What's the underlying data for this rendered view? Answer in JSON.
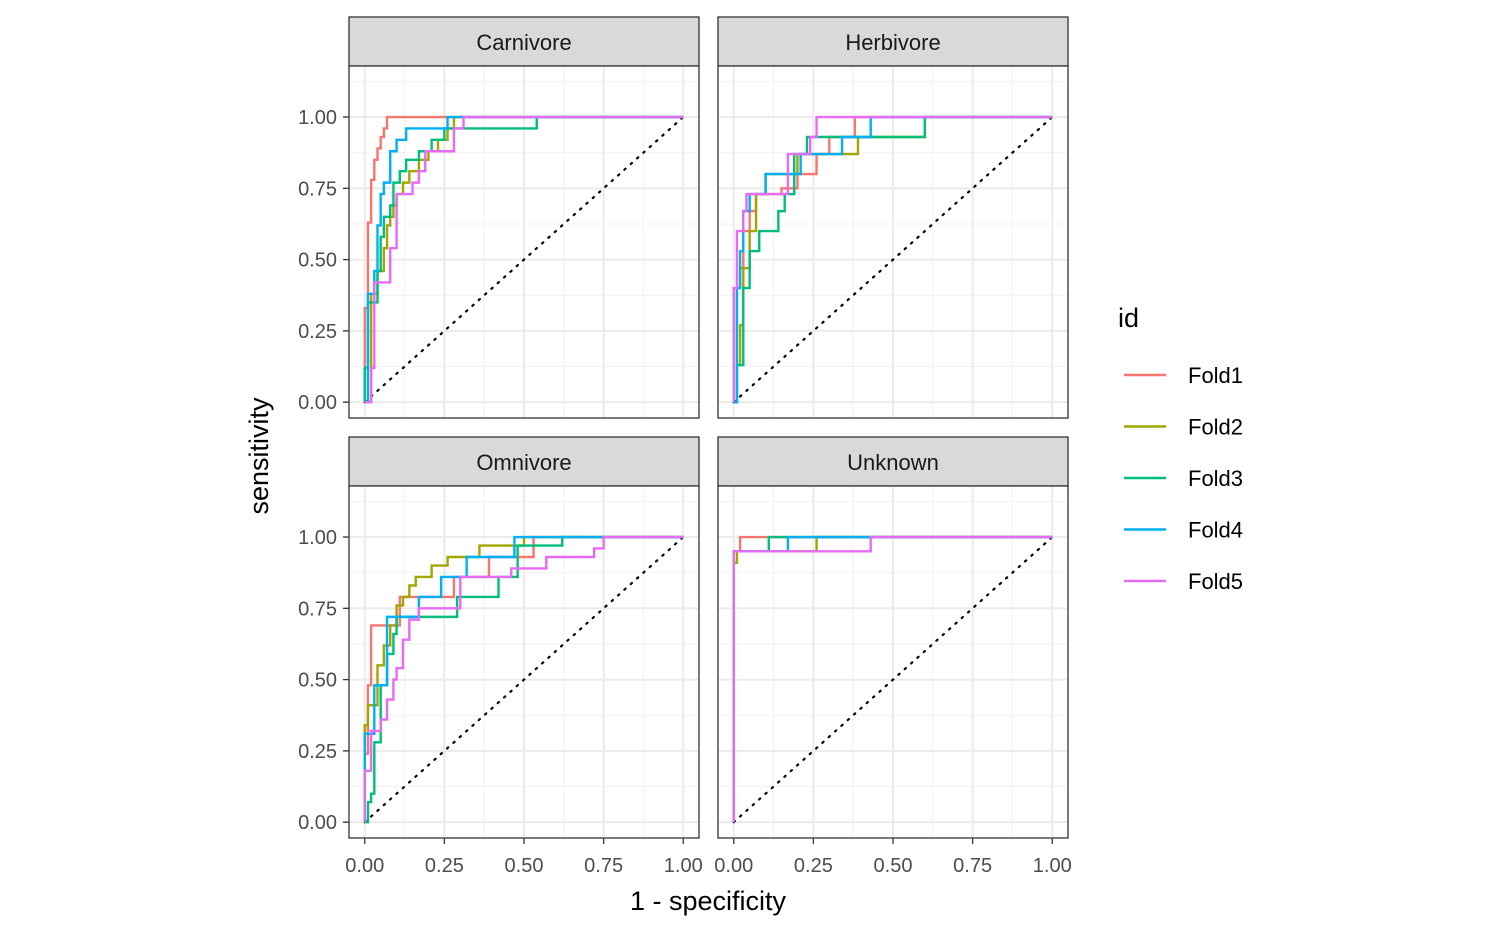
{
  "chart_data": {
    "type": "line",
    "xlabel": "1 - specificity",
    "ylabel": "sensitivity",
    "xlim": [
      0,
      1
    ],
    "ylim": [
      0,
      1
    ],
    "x_ticks": [
      "0.00",
      "0.25",
      "0.50",
      "0.75",
      "1.00"
    ],
    "y_ticks": [
      "0.00",
      "0.25",
      "0.50",
      "0.75",
      "1.00"
    ],
    "grid": true,
    "reference_line": "diagonal-dotted",
    "legend": {
      "title": "id",
      "placement": "right",
      "entries": [
        "Fold1",
        "Fold2",
        "Fold3",
        "Fold4",
        "Fold5"
      ]
    },
    "colors": {
      "Fold1": "#F8766D",
      "Fold2": "#A3A500",
      "Fold3": "#00BF7D",
      "Fold4": "#00B0F6",
      "Fold5": "#E76BF3"
    },
    "panels": [
      {
        "name": "Carnivore",
        "series": [
          {
            "name": "Fold1",
            "x": [
              0,
              0,
              0.01,
              0.01,
              0.02,
              0.02,
              0.03,
              0.03,
              0.04,
              0.04,
              0.05,
              0.05,
              0.06,
              0.06,
              0.07,
              0.07,
              0.12,
              0.25,
              1.0
            ],
            "y": [
              0,
              0.33,
              0.33,
              0.63,
              0.63,
              0.78,
              0.78,
              0.85,
              0.85,
              0.89,
              0.89,
              0.93,
              0.93,
              0.96,
              0.96,
              1.0,
              1.0,
              1.0,
              1.0
            ]
          },
          {
            "name": "Fold2",
            "x": [
              0,
              0.02,
              0.02,
              0.04,
              0.04,
              0.06,
              0.06,
              0.07,
              0.07,
              0.08,
              0.08,
              0.09,
              0.09,
              0.1,
              0.1,
              0.12,
              0.12,
              0.14,
              0.14,
              0.17,
              0.17,
              0.2,
              0.2,
              0.23,
              0.23,
              0.26,
              0.26,
              0.28,
              0.28,
              1.0
            ],
            "y": [
              0,
              0,
              0.38,
              0.38,
              0.46,
              0.46,
              0.54,
              0.54,
              0.62,
              0.62,
              0.65,
              0.65,
              0.69,
              0.69,
              0.73,
              0.73,
              0.77,
              0.77,
              0.81,
              0.81,
              0.85,
              0.85,
              0.88,
              0.88,
              0.92,
              0.92,
              0.96,
              0.96,
              1.0,
              1.0
            ]
          },
          {
            "name": "Fold3",
            "x": [
              0,
              0,
              0.01,
              0.01,
              0.04,
              0.04,
              0.05,
              0.05,
              0.06,
              0.06,
              0.08,
              0.08,
              0.09,
              0.09,
              0.11,
              0.11,
              0.13,
              0.13,
              0.17,
              0.17,
              0.21,
              0.21,
              0.25,
              0.25,
              0.3,
              0.3,
              0.54,
              0.54,
              1.0
            ],
            "y": [
              0,
              0.12,
              0.12,
              0.35,
              0.35,
              0.46,
              0.46,
              0.58,
              0.58,
              0.65,
              0.65,
              0.69,
              0.69,
              0.77,
              0.77,
              0.81,
              0.81,
              0.85,
              0.85,
              0.88,
              0.88,
              0.92,
              0.92,
              0.96,
              0.96,
              0.96,
              0.96,
              1.0,
              1.0
            ]
          },
          {
            "name": "Fold4",
            "x": [
              0,
              0.01,
              0.01,
              0.03,
              0.03,
              0.04,
              0.04,
              0.05,
              0.05,
              0.06,
              0.06,
              0.08,
              0.08,
              0.1,
              0.1,
              0.13,
              0.13,
              0.26,
              0.26,
              1.0
            ],
            "y": [
              0,
              0,
              0.38,
              0.38,
              0.46,
              0.46,
              0.62,
              0.62,
              0.73,
              0.73,
              0.77,
              0.77,
              0.88,
              0.88,
              0.92,
              0.92,
              0.96,
              0.96,
              1.0,
              1.0
            ]
          },
          {
            "name": "Fold5",
            "x": [
              0,
              0.02,
              0.02,
              0.03,
              0.03,
              0.08,
              0.08,
              0.1,
              0.1,
              0.12,
              0.12,
              0.15,
              0.15,
              0.17,
              0.17,
              0.19,
              0.19,
              0.28,
              0.28,
              0.31,
              0.31,
              1.0
            ],
            "y": [
              0,
              0,
              0.12,
              0.12,
              0.42,
              0.42,
              0.54,
              0.54,
              0.73,
              0.73,
              0.73,
              0.73,
              0.77,
              0.77,
              0.81,
              0.81,
              0.88,
              0.88,
              0.96,
              0.96,
              1.0,
              1.0
            ]
          }
        ]
      },
      {
        "name": "Herbivore",
        "series": [
          {
            "name": "Fold1",
            "x": [
              0,
              0.01,
              0.01,
              0.02,
              0.02,
              0.03,
              0.03,
              0.05,
              0.05,
              0.07,
              0.07,
              0.12,
              0.12,
              0.15,
              0.15,
              0.17,
              0.17,
              0.2,
              0.2,
              0.26,
              0.26,
              0.3,
              0.3,
              0.38,
              0.38,
              0.59,
              0.59,
              1.0
            ],
            "y": [
              0,
              0,
              0.4,
              0.4,
              0.47,
              0.47,
              0.6,
              0.6,
              0.67,
              0.67,
              0.73,
              0.73,
              0.73,
              0.73,
              0.75,
              0.75,
              0.75,
              0.75,
              0.8,
              0.8,
              0.87,
              0.87,
              0.93,
              0.93,
              1.0,
              1.0,
              1.0,
              1.0
            ]
          },
          {
            "name": "Fold2",
            "x": [
              0,
              0.01,
              0.01,
              0.02,
              0.02,
              0.03,
              0.03,
              0.05,
              0.05,
              0.07,
              0.07,
              0.1,
              0.1,
              0.14,
              0.14,
              0.17,
              0.17,
              0.2,
              0.2,
              0.25,
              0.25,
              0.39,
              0.39,
              0.6,
              0.6,
              0.61,
              0.61,
              1.0
            ],
            "y": [
              0,
              0,
              0.13,
              0.13,
              0.27,
              0.27,
              0.47,
              0.47,
              0.6,
              0.6,
              0.73,
              0.73,
              0.8,
              0.8,
              0.8,
              0.8,
              0.8,
              0.8,
              0.87,
              0.87,
              0.87,
              0.87,
              0.93,
              0.93,
              1.0,
              1.0,
              1.0,
              1.0
            ]
          },
          {
            "name": "Fold3",
            "x": [
              0,
              0.01,
              0.01,
              0.03,
              0.03,
              0.05,
              0.05,
              0.08,
              0.08,
              0.14,
              0.14,
              0.16,
              0.16,
              0.19,
              0.19,
              0.23,
              0.23,
              0.6,
              0.6,
              1.0
            ],
            "y": [
              0,
              0,
              0.13,
              0.13,
              0.4,
              0.4,
              0.53,
              0.53,
              0.6,
              0.6,
              0.67,
              0.67,
              0.73,
              0.73,
              0.87,
              0.87,
              0.93,
              0.93,
              1.0,
              1.0
            ]
          },
          {
            "name": "Fold4",
            "x": [
              0,
              0.01,
              0.01,
              0.02,
              0.02,
              0.03,
              0.03,
              0.05,
              0.05,
              0.1,
              0.1,
              0.14,
              0.14,
              0.21,
              0.21,
              0.34,
              0.34,
              0.43,
              0.43,
              1.0
            ],
            "y": [
              0,
              0,
              0.4,
              0.4,
              0.53,
              0.53,
              0.67,
              0.67,
              0.73,
              0.73,
              0.8,
              0.8,
              0.8,
              0.8,
              0.87,
              0.87,
              0.93,
              0.93,
              1.0,
              1.0
            ]
          },
          {
            "name": "Fold5",
            "x": [
              0,
              0,
              0.01,
              0.01,
              0.03,
              0.03,
              0.04,
              0.04,
              0.12,
              0.12,
              0.17,
              0.17,
              0.24,
              0.24,
              0.26,
              0.26,
              1.0
            ],
            "y": [
              0,
              0.4,
              0.4,
              0.6,
              0.6,
              0.67,
              0.67,
              0.73,
              0.73,
              0.73,
              0.73,
              0.87,
              0.87,
              0.93,
              0.93,
              1.0,
              1.0
            ]
          }
        ]
      },
      {
        "name": "Omnivore",
        "series": [
          {
            "name": "Fold1",
            "x": [
              0,
              0,
              0.01,
              0.01,
              0.02,
              0.02,
              0.07,
              0.07,
              0.11,
              0.11,
              0.17,
              0.17,
              0.28,
              0.28,
              0.39,
              0.39,
              0.53,
              0.53,
              1.0
            ],
            "y": [
              0,
              0.24,
              0.24,
              0.48,
              0.48,
              0.69,
              0.69,
              0.69,
              0.69,
              0.79,
              0.79,
              0.79,
              0.79,
              0.86,
              0.86,
              0.93,
              0.93,
              1.0,
              1.0
            ]
          },
          {
            "name": "Fold2",
            "x": [
              0,
              0,
              0.01,
              0.01,
              0.04,
              0.04,
              0.06,
              0.06,
              0.08,
              0.08,
              0.1,
              0.1,
              0.12,
              0.12,
              0.14,
              0.14,
              0.16,
              0.16,
              0.21,
              0.21,
              0.26,
              0.26,
              0.36,
              0.36,
              0.5,
              0.5,
              0.55,
              1.0
            ],
            "y": [
              0,
              0.34,
              0.34,
              0.41,
              0.41,
              0.55,
              0.55,
              0.62,
              0.62,
              0.69,
              0.69,
              0.76,
              0.76,
              0.79,
              0.79,
              0.83,
              0.83,
              0.86,
              0.86,
              0.9,
              0.9,
              0.93,
              0.93,
              0.97,
              0.97,
              1.0,
              1.0,
              1.0
            ]
          },
          {
            "name": "Fold3",
            "x": [
              0,
              0.01,
              0.01,
              0.02,
              0.02,
              0.03,
              0.03,
              0.05,
              0.05,
              0.07,
              0.07,
              0.09,
              0.09,
              0.1,
              0.1,
              0.13,
              0.13,
              0.29,
              0.29,
              0.36,
              0.36,
              0.42,
              0.42,
              0.48,
              0.48,
              0.62,
              0.62,
              1.0
            ],
            "y": [
              0,
              0,
              0.07,
              0.07,
              0.1,
              0.1,
              0.28,
              0.28,
              0.48,
              0.48,
              0.59,
              0.59,
              0.66,
              0.66,
              0.72,
              0.72,
              0.72,
              0.72,
              0.79,
              0.79,
              0.79,
              0.79,
              0.86,
              0.86,
              0.97,
              0.97,
              1.0,
              1.0
            ]
          },
          {
            "name": "Fold4",
            "x": [
              0,
              0,
              0.03,
              0.03,
              0.07,
              0.07,
              0.12,
              0.12,
              0.17,
              0.17,
              0.24,
              0.24,
              0.32,
              0.32,
              0.37,
              0.37,
              0.47,
              0.47,
              0.55,
              1.0
            ],
            "y": [
              0,
              0.31,
              0.31,
              0.48,
              0.48,
              0.72,
              0.72,
              0.72,
              0.72,
              0.79,
              0.79,
              0.86,
              0.86,
              0.93,
              0.93,
              0.93,
              0.93,
              1.0,
              1.0,
              1.0
            ]
          },
          {
            "name": "Fold5",
            "x": [
              0,
              0,
              0.02,
              0.02,
              0.05,
              0.05,
              0.07,
              0.07,
              0.09,
              0.09,
              0.1,
              0.1,
              0.12,
              0.12,
              0.14,
              0.14,
              0.17,
              0.17,
              0.3,
              0.3,
              0.46,
              0.46,
              0.57,
              0.57,
              0.72,
              0.72,
              0.75,
              0.75,
              1.0
            ],
            "y": [
              0,
              0.18,
              0.18,
              0.32,
              0.32,
              0.36,
              0.36,
              0.43,
              0.43,
              0.5,
              0.5,
              0.54,
              0.54,
              0.64,
              0.64,
              0.71,
              0.71,
              0.75,
              0.75,
              0.86,
              0.86,
              0.89,
              0.89,
              0.93,
              0.93,
              0.96,
              0.96,
              1.0,
              1.0
            ]
          }
        ]
      },
      {
        "name": "Unknown",
        "series": [
          {
            "name": "Fold1",
            "x": [
              0,
              0,
              0.02,
              0.02,
              1.0
            ],
            "y": [
              0,
              0.95,
              0.95,
              1.0,
              1.0
            ]
          },
          {
            "name": "Fold2",
            "x": [
              0,
              0,
              0.01,
              0.01,
              0.26,
              0.26,
              1.0
            ],
            "y": [
              0,
              0.91,
              0.91,
              0.95,
              0.95,
              1.0,
              1.0
            ]
          },
          {
            "name": "Fold3",
            "x": [
              0,
              0,
              0.11,
              0.11,
              1.0
            ],
            "y": [
              0,
              0.95,
              0.95,
              1.0,
              1.0
            ]
          },
          {
            "name": "Fold4",
            "x": [
              0,
              0,
              0.17,
              0.17,
              1.0
            ],
            "y": [
              0,
              0.95,
              0.95,
              1.0,
              1.0
            ]
          },
          {
            "name": "Fold5",
            "x": [
              0,
              0,
              0.43,
              0.43,
              1.0
            ],
            "y": [
              0,
              0.95,
              0.95,
              1.0,
              1.0
            ]
          }
        ]
      }
    ]
  }
}
